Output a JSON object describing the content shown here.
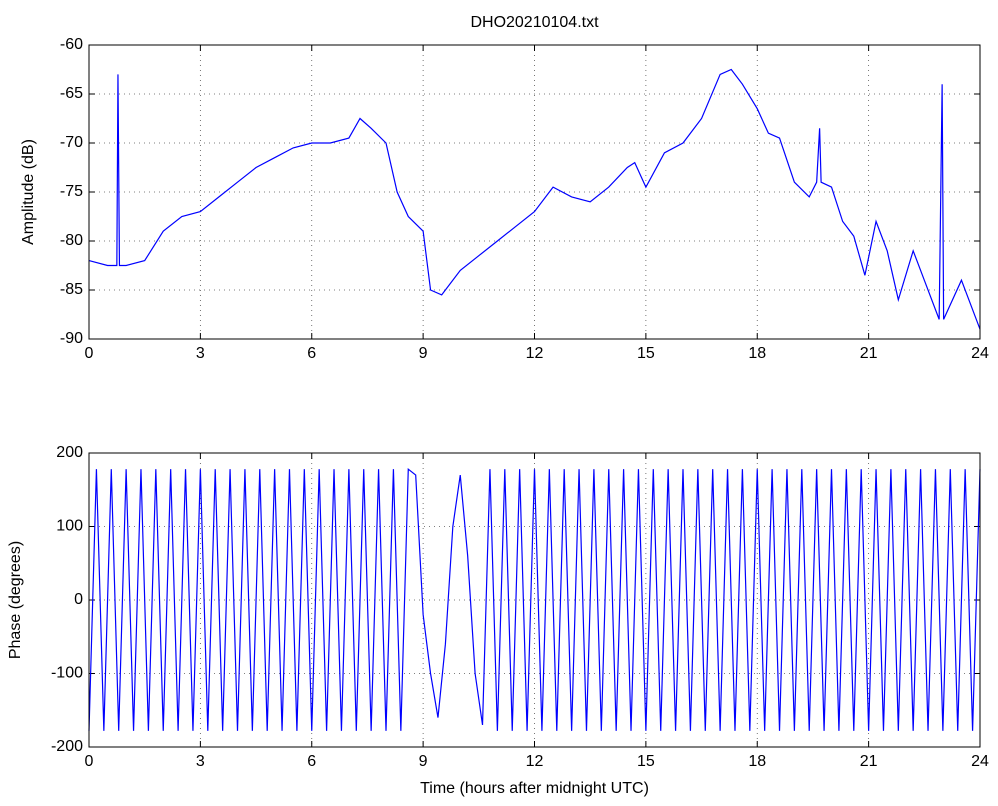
{
  "chart_data": [
    {
      "type": "line",
      "title": "DHO20210104.txt",
      "ylabel": "Amplitude (dB)",
      "xlim": [
        0,
        24
      ],
      "xticks": [
        0,
        3,
        6,
        9,
        12,
        15,
        18,
        21,
        24
      ],
      "ylim": [
        -90,
        -60
      ],
      "yticks": [
        -90,
        -85,
        -80,
        -75,
        -70,
        -65,
        -60
      ],
      "grid": true,
      "series": [
        {
          "name": "Amplitude",
          "color": "#0000ff",
          "x": [
            0,
            0.5,
            0.75,
            0.78,
            0.82,
            1.0,
            1.5,
            2.0,
            2.5,
            3.0,
            3.5,
            4.0,
            4.5,
            5.0,
            5.5,
            6.0,
            6.5,
            7.0,
            7.3,
            7.6,
            8.0,
            8.3,
            8.6,
            9.0,
            9.2,
            9.5,
            10.0,
            10.5,
            11.0,
            11.5,
            12.0,
            12.5,
            13.0,
            13.5,
            14.0,
            14.5,
            14.7,
            15.0,
            15.5,
            16.0,
            16.5,
            17.0,
            17.3,
            17.6,
            18.0,
            18.3,
            18.6,
            19.0,
            19.4,
            19.6,
            19.68,
            19.72,
            20.0,
            20.3,
            20.6,
            20.9,
            21.2,
            21.5,
            21.8,
            22.2,
            22.5,
            22.9,
            22.98,
            23.02,
            23.5,
            24.0
          ],
          "values": [
            -82,
            -82.5,
            -82.5,
            -63,
            -82.5,
            -82.5,
            -82,
            -79,
            -77.5,
            -77,
            -75.5,
            -74,
            -72.5,
            -71.5,
            -70.5,
            -70,
            -70,
            -69.5,
            -67.5,
            -68.5,
            -70,
            -75,
            -77.5,
            -79,
            -85,
            -85.5,
            -83,
            -81.5,
            -80,
            -78.5,
            -77,
            -74.5,
            -75.5,
            -76,
            -74.5,
            -72.5,
            -72,
            -74.5,
            -71,
            -70,
            -67.5,
            -63,
            -62.5,
            -64,
            -66.5,
            -69,
            -69.5,
            -74,
            -75.5,
            -74,
            -68.5,
            -74,
            -74.5,
            -78,
            -79.5,
            -83.5,
            -78,
            -81,
            -86,
            -81,
            -84,
            -88,
            -64,
            -88,
            -84,
            -89
          ]
        }
      ]
    },
    {
      "type": "line",
      "ylabel": "Phase (degrees)",
      "xlabel": "Time (hours after midnight UTC)",
      "xlim": [
        0,
        24
      ],
      "xticks": [
        0,
        3,
        6,
        9,
        12,
        15,
        18,
        21,
        24
      ],
      "ylim": [
        -200,
        200
      ],
      "yticks": [
        -200,
        -100,
        0,
        100,
        200
      ],
      "grid": true,
      "series": [
        {
          "name": "Phase",
          "color": "#0000ff",
          "x": [
            0,
            0.2,
            0.4,
            0.6,
            0.8,
            1.0,
            1.2,
            1.4,
            1.6,
            1.8,
            2.0,
            2.2,
            2.4,
            2.6,
            2.8,
            3.0,
            3.2,
            3.4,
            3.6,
            3.8,
            4.0,
            4.2,
            4.4,
            4.6,
            4.8,
            5.0,
            5.2,
            5.4,
            5.6,
            5.8,
            6.0,
            6.2,
            6.4,
            6.6,
            6.8,
            7.0,
            7.2,
            7.4,
            7.6,
            7.8,
            8.0,
            8.2,
            8.4,
            8.6,
            8.8,
            9.0,
            9.2,
            9.4,
            9.6,
            9.8,
            10.0,
            10.2,
            10.4,
            10.6,
            10.8,
            11.0,
            11.2,
            11.4,
            11.6,
            11.8,
            12.0,
            12.2,
            12.4,
            12.6,
            12.8,
            13.0,
            13.2,
            13.4,
            13.6,
            13.8,
            14.0,
            14.2,
            14.4,
            14.6,
            14.8,
            15.0,
            15.2,
            15.4,
            15.6,
            15.8,
            16.0,
            16.2,
            16.4,
            16.6,
            16.8,
            17.0,
            17.2,
            17.4,
            17.6,
            17.8,
            18.0,
            18.2,
            18.4,
            18.6,
            18.8,
            19.0,
            19.2,
            19.4,
            19.6,
            19.8,
            20.0,
            20.2,
            20.4,
            20.6,
            20.8,
            21.0,
            21.2,
            21.4,
            21.6,
            21.8,
            22.0,
            22.2,
            22.4,
            22.6,
            22.8,
            23.0,
            23.2,
            23.4,
            23.6,
            23.8,
            24.0
          ],
          "values": [
            -178,
            178,
            -178,
            178,
            -178,
            178,
            -178,
            178,
            -178,
            178,
            -178,
            178,
            -178,
            178,
            -178,
            178,
            -178,
            178,
            -178,
            178,
            -178,
            178,
            -178,
            178,
            -178,
            178,
            -178,
            178,
            -178,
            178,
            -178,
            178,
            -178,
            178,
            -178,
            178,
            -178,
            178,
            -178,
            178,
            -178,
            178,
            -178,
            178,
            170,
            -20,
            -100,
            -160,
            -60,
            100,
            170,
            60,
            -100,
            -170,
            178,
            -178,
            178,
            -178,
            178,
            -178,
            178,
            -178,
            178,
            -178,
            178,
            -178,
            178,
            -178,
            178,
            -178,
            178,
            -178,
            178,
            -178,
            178,
            -178,
            178,
            -178,
            178,
            -178,
            178,
            -178,
            178,
            -178,
            178,
            -178,
            178,
            -178,
            178,
            -178,
            178,
            -178,
            178,
            -178,
            178,
            -178,
            178,
            -178,
            178,
            -178,
            178,
            -178,
            178,
            -178,
            178,
            -178,
            178,
            -178,
            178,
            -178,
            178,
            -178,
            178,
            -178,
            178,
            -178,
            178,
            -178,
            178,
            -178,
            178
          ]
        }
      ]
    }
  ]
}
